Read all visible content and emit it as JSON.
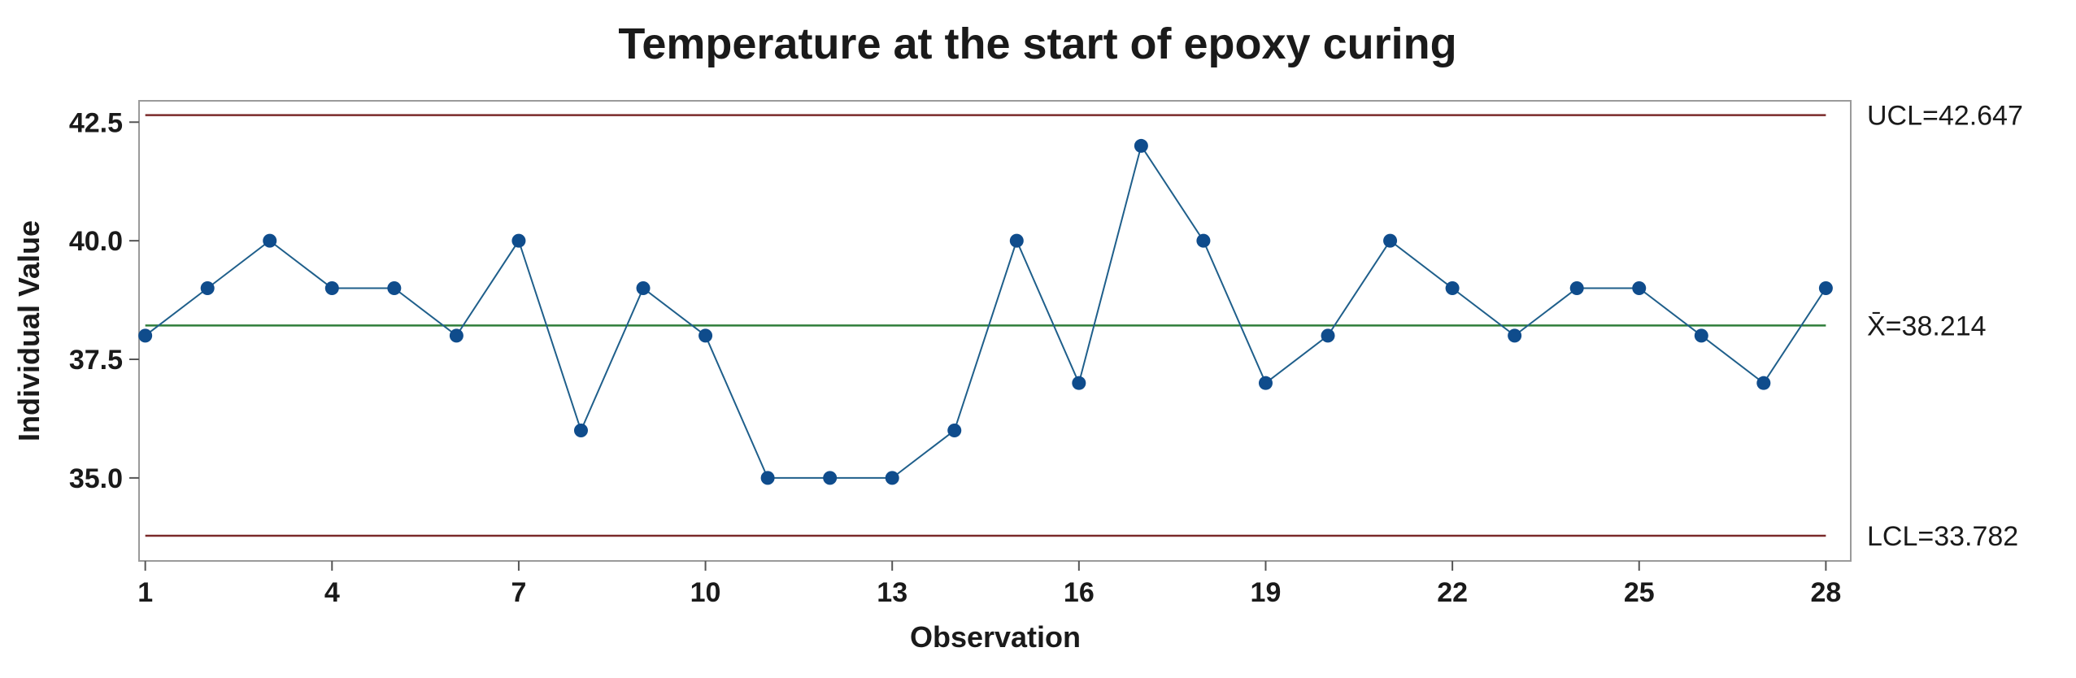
{
  "chart_data": {
    "type": "line",
    "title": "Temperature at the start of epoxy curing",
    "xlabel": "Observation",
    "ylabel": "Individual Value",
    "xlim": [
      0.9,
      28.4
    ],
    "ylim": [
      33.25,
      42.95
    ],
    "x_ticks": [
      "1",
      "4",
      "7",
      "10",
      "13",
      "16",
      "19",
      "22",
      "25",
      "28"
    ],
    "y_ticks": [
      "35.0",
      "37.5",
      "40.0",
      "42.5"
    ],
    "x_tick_values": [
      1,
      4,
      7,
      10,
      13,
      16,
      19,
      22,
      25,
      28
    ],
    "y_tick_values": [
      35.0,
      37.5,
      40.0,
      42.5
    ],
    "x": [
      1,
      2,
      3,
      4,
      5,
      6,
      7,
      8,
      9,
      10,
      11,
      12,
      13,
      14,
      15,
      16,
      17,
      18,
      19,
      20,
      21,
      22,
      23,
      24,
      25,
      26,
      27,
      28
    ],
    "series": [
      {
        "values": [
          38,
          39,
          40,
          39,
          39,
          38,
          40,
          36,
          39,
          38,
          35,
          35,
          35,
          36,
          40,
          37,
          42,
          40,
          37,
          38,
          40,
          39,
          38,
          39,
          39,
          38,
          37,
          39
        ],
        "color": "#1f5f8b",
        "marker_color": "#0f4c8c"
      }
    ],
    "control_limits": {
      "ucl": {
        "label": "UCL=42.647",
        "value": 42.647,
        "color": "#7a2a2a"
      },
      "center": {
        "label": "X̄=38.214",
        "value": 38.214,
        "color": "#2e7d3a"
      },
      "lcl": {
        "label": "LCL=33.782",
        "value": 33.782,
        "color": "#7a2a2a"
      }
    },
    "grid": false
  }
}
